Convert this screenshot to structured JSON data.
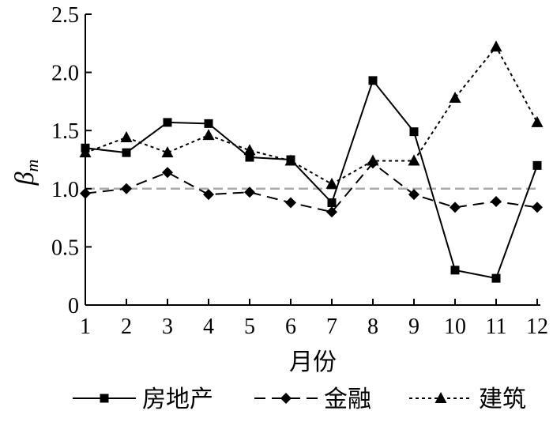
{
  "chart_data": {
    "type": "line",
    "xlabel": "月份",
    "ylabel": {
      "main": "β",
      "sub": "m"
    },
    "categories": [
      "1",
      "2",
      "3",
      "4",
      "5",
      "6",
      "7",
      "8",
      "9",
      "10",
      "11",
      "12"
    ],
    "ylim": [
      0,
      2.5
    ],
    "yticks": [
      "0",
      "0.5",
      "1.0",
      "1.5",
      "2.0",
      "2.5"
    ],
    "yticks_values": [
      0,
      0.5,
      1.0,
      1.5,
      2.0,
      2.5
    ],
    "reference_line": {
      "y": 1.0,
      "color": "#aaaaaa",
      "style": "dashed"
    },
    "legend_position": "bottom",
    "series": [
      {
        "name": "房地产",
        "style": "solid",
        "marker": "square",
        "color": "#000000",
        "values": [
          1.35,
          1.31,
          1.57,
          1.56,
          1.27,
          1.25,
          0.88,
          1.93,
          1.49,
          0.3,
          0.23,
          1.2
        ]
      },
      {
        "name": "金融",
        "style": "dashed",
        "marker": "diamond",
        "color": "#000000",
        "values": [
          0.96,
          1.0,
          1.14,
          0.95,
          0.97,
          0.88,
          0.8,
          1.22,
          0.95,
          0.84,
          0.89,
          0.84
        ]
      },
      {
        "name": "建筑",
        "style": "dotted",
        "marker": "triangle",
        "color": "#000000",
        "values": [
          1.31,
          1.44,
          1.31,
          1.46,
          1.33,
          1.24,
          1.04,
          1.24,
          1.24,
          1.78,
          2.22,
          1.57
        ]
      }
    ]
  }
}
